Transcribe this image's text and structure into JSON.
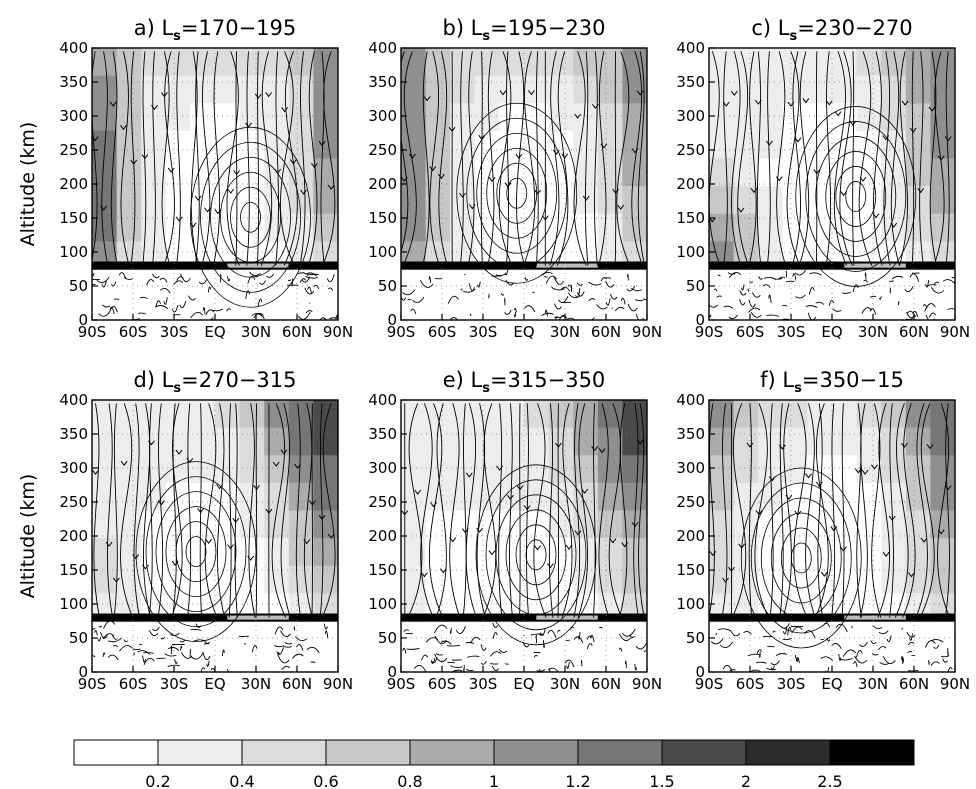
{
  "chart_data": [
    {
      "type": "heatmap",
      "panel": "a",
      "title_prefix": "a) L",
      "title_sub": "s",
      "title_suffix": "=170−195",
      "ylabel": "Altitude (km)",
      "xlabel": "",
      "x_ticks": [
        "90S",
        "60S",
        "30S",
        "EQ",
        "30N",
        "60N",
        "90N"
      ],
      "y_ticks": [
        "0",
        "50",
        "100",
        "150",
        "200",
        "250",
        "300",
        "350",
        "400"
      ],
      "xlim": [
        -90,
        90
      ],
      "ylim": [
        0,
        400
      ],
      "overlay": "streamlines",
      "shading_note": "darkest near both poles above 300 km, lightest mid-latitudes 100-300 km",
      "cell_levels": [
        [
          4,
          3,
          2,
          2,
          2,
          2,
          2,
          2,
          3,
          5
        ],
        [
          5,
          3,
          1,
          1,
          1,
          1,
          1,
          1,
          2,
          5
        ],
        [
          5,
          3,
          1,
          1,
          0,
          0,
          1,
          1,
          2,
          5
        ],
        [
          6,
          3,
          1,
          0,
          0,
          0,
          0,
          1,
          2,
          5
        ],
        [
          6,
          3,
          1,
          0,
          0,
          0,
          0,
          1,
          2,
          4
        ],
        [
          6,
          3,
          1,
          0,
          0,
          0,
          0,
          1,
          2,
          4
        ],
        [
          6,
          3,
          1,
          0,
          0,
          0,
          0,
          1,
          1,
          3
        ],
        [
          5,
          2,
          1,
          0,
          0,
          0,
          0,
          0,
          1,
          2
        ]
      ]
    },
    {
      "type": "heatmap",
      "panel": "b",
      "title_prefix": "b) L",
      "title_sub": "s",
      "title_suffix": "=195−230",
      "ylabel": "",
      "xlabel": "",
      "x_ticks": [
        "90S",
        "60S",
        "30S",
        "EQ",
        "30N",
        "60N",
        "90N"
      ],
      "y_ticks": [
        "0",
        "50",
        "100",
        "150",
        "200",
        "250",
        "300",
        "350",
        "400"
      ],
      "xlim": [
        -90,
        90
      ],
      "ylim": [
        0,
        400
      ],
      "overlay": "streamlines",
      "cell_levels": [
        [
          5,
          3,
          2,
          2,
          2,
          2,
          2,
          3,
          3,
          5
        ],
        [
          5,
          3,
          2,
          1,
          1,
          1,
          1,
          2,
          3,
          5
        ],
        [
          5,
          3,
          1,
          1,
          0,
          0,
          1,
          1,
          2,
          4
        ],
        [
          5,
          3,
          1,
          0,
          0,
          0,
          0,
          1,
          2,
          4
        ],
        [
          5,
          3,
          1,
          0,
          0,
          0,
          0,
          1,
          2,
          4
        ],
        [
          5,
          3,
          1,
          0,
          0,
          0,
          0,
          1,
          2,
          3
        ],
        [
          5,
          3,
          1,
          0,
          0,
          0,
          0,
          0,
          1,
          3
        ],
        [
          4,
          2,
          1,
          0,
          0,
          0,
          0,
          0,
          1,
          2
        ]
      ]
    },
    {
      "type": "heatmap",
      "panel": "c",
      "title_prefix": "c) L",
      "title_sub": "s",
      "title_suffix": "=230−270",
      "ylabel": "",
      "xlabel": "",
      "x_ticks": [
        "90S",
        "60S",
        "30S",
        "EQ",
        "30N",
        "60N",
        "90N"
      ],
      "y_ticks": [
        "0",
        "50",
        "100",
        "150",
        "200",
        "250",
        "300",
        "350",
        "400"
      ],
      "xlim": [
        -90,
        90
      ],
      "ylim": [
        0,
        400
      ],
      "overlay": "streamlines",
      "cell_levels": [
        [
          1,
          1,
          1,
          1,
          1,
          1,
          2,
          3,
          4,
          5
        ],
        [
          1,
          1,
          1,
          1,
          1,
          1,
          1,
          2,
          4,
          5
        ],
        [
          1,
          1,
          1,
          0,
          0,
          0,
          1,
          2,
          3,
          5
        ],
        [
          1,
          1,
          1,
          0,
          0,
          0,
          0,
          1,
          3,
          5
        ],
        [
          2,
          1,
          0,
          0,
          0,
          0,
          0,
          1,
          3,
          4
        ],
        [
          3,
          2,
          1,
          0,
          0,
          0,
          0,
          1,
          2,
          4
        ],
        [
          4,
          3,
          1,
          0,
          0,
          0,
          0,
          1,
          2,
          3
        ],
        [
          5,
          3,
          1,
          0,
          0,
          0,
          0,
          0,
          1,
          2
        ]
      ]
    },
    {
      "type": "heatmap",
      "panel": "d",
      "title_prefix": "d) L",
      "title_sub": "s",
      "title_suffix": "=270−315",
      "ylabel": "Altitude (km)",
      "xlabel": "",
      "x_ticks": [
        "90S",
        "60S",
        "30S",
        "EQ",
        "30N",
        "60N",
        "90N"
      ],
      "y_ticks": [
        "0",
        "50",
        "100",
        "150",
        "200",
        "250",
        "300",
        "350",
        "400"
      ],
      "xlim": [
        -90,
        90
      ],
      "ylim": [
        0,
        400
      ],
      "overlay": "streamlines",
      "cell_levels": [
        [
          1,
          1,
          1,
          1,
          1,
          2,
          3,
          5,
          6,
          7
        ],
        [
          1,
          1,
          1,
          1,
          1,
          1,
          2,
          4,
          6,
          7
        ],
        [
          1,
          1,
          1,
          1,
          1,
          1,
          2,
          3,
          5,
          6
        ],
        [
          1,
          1,
          1,
          0,
          0,
          0,
          1,
          2,
          4,
          6
        ],
        [
          1,
          1,
          0,
          0,
          0,
          0,
          1,
          2,
          3,
          5
        ],
        [
          2,
          1,
          0,
          0,
          0,
          0,
          0,
          1,
          3,
          4
        ],
        [
          2,
          1,
          0,
          0,
          0,
          0,
          0,
          1,
          2,
          3
        ],
        [
          1,
          1,
          0,
          0,
          0,
          0,
          0,
          0,
          1,
          2
        ]
      ]
    },
    {
      "type": "heatmap",
      "panel": "e",
      "title_prefix": "e) L",
      "title_sub": "s",
      "title_suffix": "=315−350",
      "ylabel": "",
      "xlabel": "",
      "x_ticks": [
        "90S",
        "60S",
        "30S",
        "EQ",
        "30N",
        "60N",
        "90N"
      ],
      "y_ticks": [
        "0",
        "50",
        "100",
        "150",
        "200",
        "250",
        "300",
        "350",
        "400"
      ],
      "xlim": [
        -90,
        90
      ],
      "ylim": [
        0,
        400
      ],
      "overlay": "streamlines",
      "cell_levels": [
        [
          1,
          1,
          1,
          1,
          1,
          2,
          3,
          4,
          6,
          7
        ],
        [
          1,
          1,
          1,
          1,
          1,
          1,
          2,
          4,
          5,
          7
        ],
        [
          1,
          1,
          1,
          1,
          1,
          1,
          2,
          3,
          5,
          6
        ],
        [
          1,
          1,
          1,
          1,
          1,
          1,
          1,
          2,
          4,
          5
        ],
        [
          1,
          0,
          0,
          0,
          0,
          0,
          1,
          2,
          3,
          4
        ],
        [
          1,
          0,
          0,
          0,
          0,
          0,
          0,
          1,
          2,
          3
        ],
        [
          1,
          0,
          0,
          0,
          0,
          0,
          0,
          1,
          2,
          3
        ],
        [
          1,
          0,
          0,
          0,
          0,
          0,
          0,
          0,
          1,
          2
        ]
      ]
    },
    {
      "type": "heatmap",
      "panel": "f",
      "title_prefix": "f) L",
      "title_sub": "s",
      "title_suffix": "=350−15",
      "ylabel": "",
      "xlabel": "",
      "x_ticks": [
        "90S",
        "60S",
        "30S",
        "EQ",
        "30N",
        "60N",
        "90N"
      ],
      "y_ticks": [
        "0",
        "50",
        "100",
        "150",
        "200",
        "250",
        "300",
        "350",
        "400"
      ],
      "xlim": [
        -90,
        90
      ],
      "ylim": [
        0,
        400
      ],
      "overlay": "streamlines",
      "cell_levels": [
        [
          5,
          3,
          2,
          2,
          1,
          1,
          2,
          3,
          5,
          6
        ],
        [
          4,
          2,
          1,
          1,
          1,
          1,
          1,
          2,
          4,
          6
        ],
        [
          3,
          2,
          1,
          1,
          0,
          0,
          1,
          2,
          3,
          5
        ],
        [
          3,
          1,
          1,
          0,
          0,
          0,
          0,
          1,
          3,
          5
        ],
        [
          2,
          1,
          0,
          0,
          0,
          0,
          0,
          1,
          2,
          4
        ],
        [
          2,
          1,
          0,
          0,
          0,
          0,
          0,
          1,
          2,
          3
        ],
        [
          2,
          1,
          0,
          0,
          0,
          0,
          0,
          1,
          2,
          3
        ],
        [
          1,
          1,
          0,
          0,
          0,
          0,
          0,
          0,
          1,
          2
        ]
      ]
    }
  ],
  "colorbar": {
    "levels": [
      "0.2",
      "0.4",
      "0.6",
      "0.8",
      "1",
      "1.2",
      "1.5",
      "2",
      "2.5"
    ],
    "colors": [
      "#ffffff",
      "#ededed",
      "#dcdcdc",
      "#c8c8c8",
      "#ababab",
      "#8f8f8f",
      "#767676",
      "#4a4a4a",
      "#2b2b2b",
      "#000000"
    ]
  }
}
